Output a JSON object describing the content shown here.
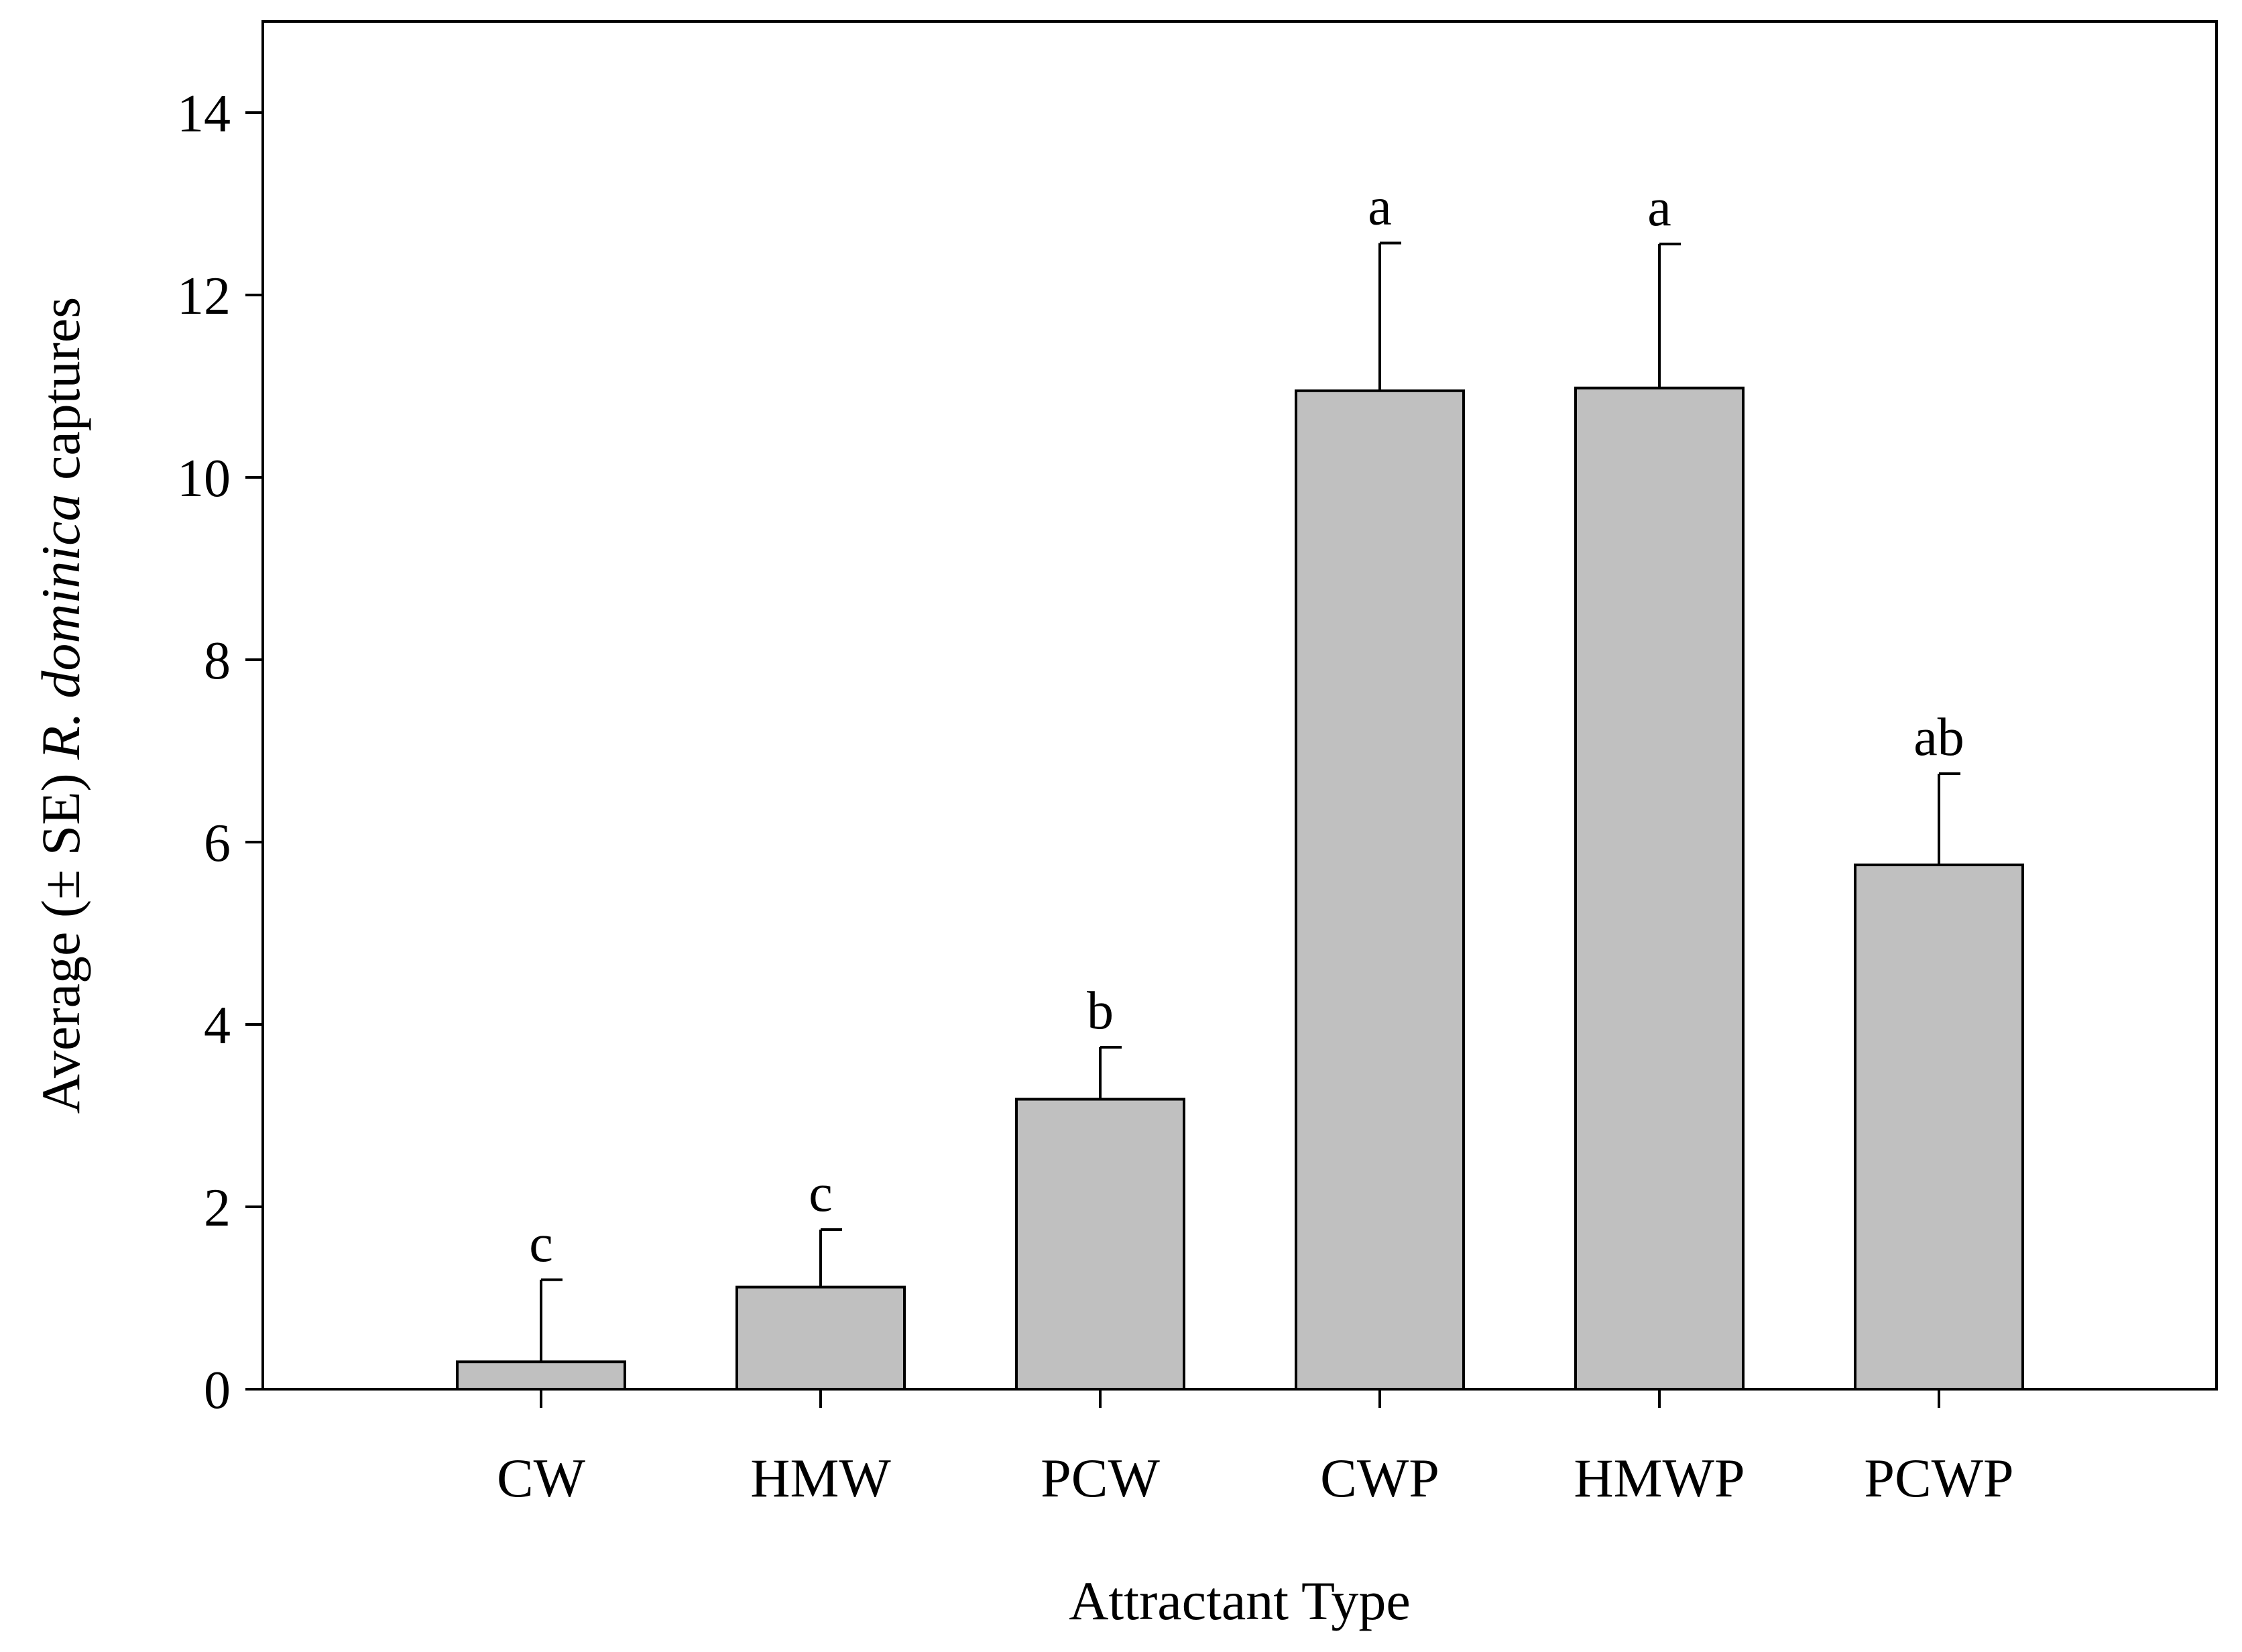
{
  "chart_data": {
    "type": "bar",
    "categories": [
      "CW",
      "HMW",
      "PCW",
      "CWP",
      "HMWP",
      "PCWP"
    ],
    "values": [
      0.3,
      1.12,
      3.18,
      10.95,
      10.98,
      5.75
    ],
    "errors": [
      0.9,
      0.63,
      0.57,
      1.62,
      1.58,
      1.0
    ],
    "letters": [
      "c",
      "c",
      "b",
      "a",
      "a",
      "ab"
    ],
    "xlabel": "Attractant Type",
    "ylabel": {
      "prefix": "Average (± SE) ",
      "species": "R. dominica",
      "suffix": " captures"
    },
    "ylim": [
      0,
      15
    ],
    "yticks": [
      0,
      2,
      4,
      6,
      8,
      10,
      12,
      14
    ],
    "grid": false,
    "legend": "none",
    "bar_color": "#c0c0c0",
    "edge_color": "#000000"
  }
}
